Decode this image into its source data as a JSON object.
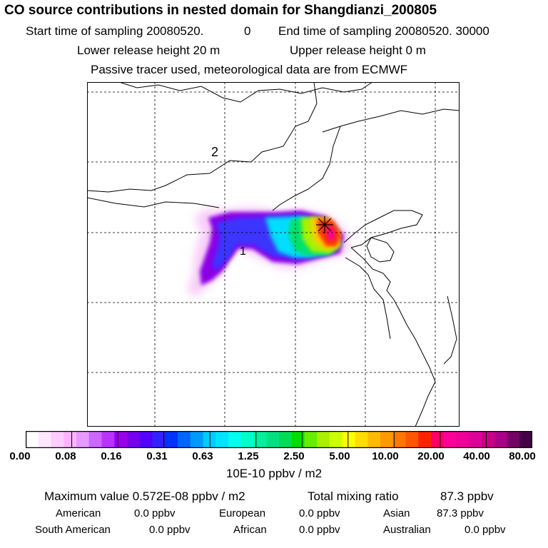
{
  "header": {
    "title": "CO  source contributions in nested domain for Shangdianzi_200805",
    "start_label": "Start time of sampling 20080520.",
    "start_value": "0",
    "end_label": "End time of sampling 20080520. 30000",
    "lower_label": "Lower release height   20 m",
    "upper_label": "Upper release height    0 m",
    "tracer_note": "Passive tracer used, meteorological data are from ECMWF"
  },
  "map": {
    "region_labels": [
      "2",
      "1"
    ],
    "site_marker": "asterisk-icon",
    "frame_color": "#000000",
    "gridline_color": "#000000"
  },
  "colorbar": {
    "colors": [
      "#ffffff",
      "#ffe6ff",
      "#ffccff",
      "#ffb3ff",
      "#e699ff",
      "#cc66ff",
      "#b833ff",
      "#9900ee",
      "#7700ee",
      "#5500ff",
      "#3322ff",
      "#0033ff",
      "#0066ff",
      "#0099ff",
      "#00ccff",
      "#00e5ff",
      "#00ffee",
      "#00ffcc",
      "#00f0a0",
      "#00e080",
      "#00dd55",
      "#00dd00",
      "#66ee00",
      "#aaf000",
      "#ccff00",
      "#ffff00",
      "#ffdd00",
      "#ffbb00",
      "#ff9900",
      "#ff7700",
      "#ff5500",
      "#ff2200",
      "#ff0066",
      "#ff0099",
      "#ee0099",
      "#dd0099",
      "#cc0088",
      "#aa0088",
      "#770066",
      "#440044"
    ],
    "tick_labels": [
      "0.00",
      "0.08",
      "0.16",
      "0.31",
      "0.63",
      "1.25",
      "2.50",
      "5.00",
      "10.00",
      "20.00",
      "40.00",
      "80.00"
    ],
    "units": "10E-10 ppbv / m2"
  },
  "summary": {
    "max_label": "Maximum value  0.572E-08 ppbv / m2",
    "total_label": "Total mixing ratio",
    "total_value": "87.3 ppbv",
    "contributions": [
      {
        "name": "American",
        "value": "0.0 ppbv"
      },
      {
        "name": "European",
        "value": "0.0 ppbv"
      },
      {
        "name": "Asian",
        "value": "87.3 ppbv"
      },
      {
        "name": "South American",
        "value": "0.0 ppbv"
      },
      {
        "name": "African",
        "value": "0.0 ppbv"
      },
      {
        "name": "Australian",
        "value": "0.0 ppbv"
      }
    ]
  }
}
